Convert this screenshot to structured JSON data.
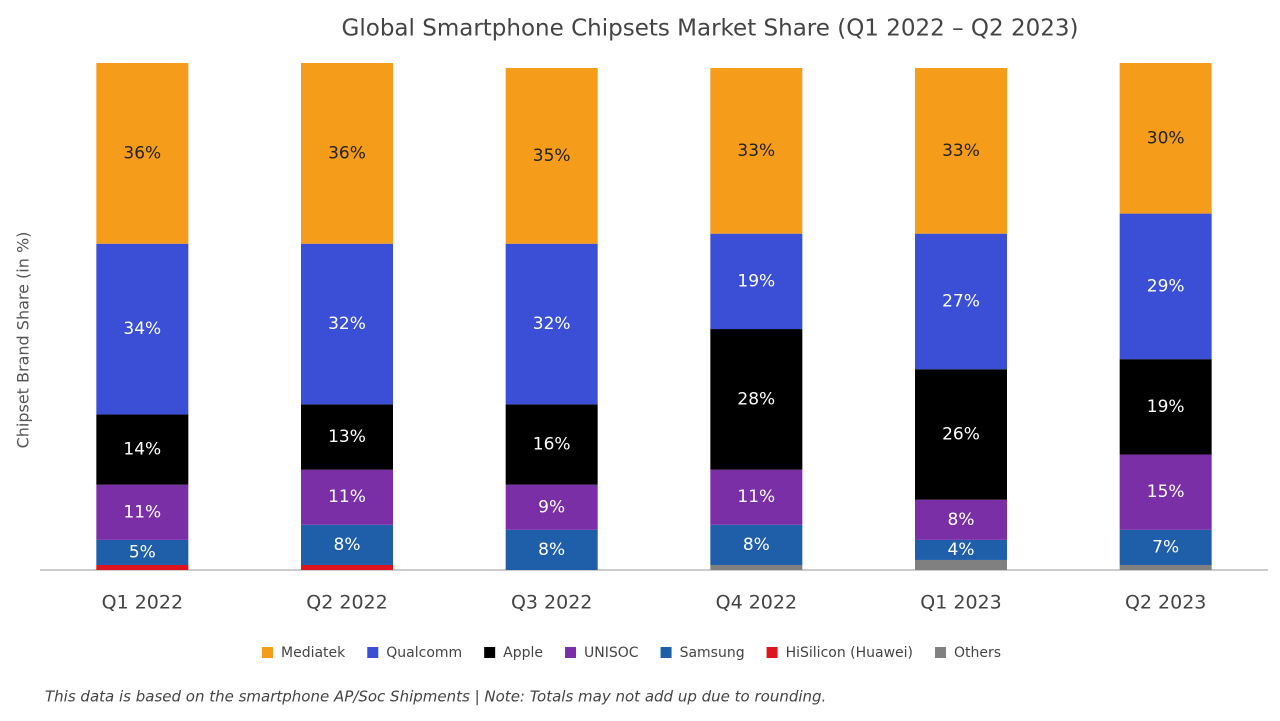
{
  "chart_data": {
    "type": "stacked_bar",
    "title": "Global Smartphone Chipsets Market Share (Q1 2022 – Q2 2023)",
    "y_label": "Chipset Brand Share (in %)",
    "note": "This data is based on the smartphone AP/Soc Shipments | Note: Totals may not add up due to rounding.",
    "categories": [
      "Q1 2022",
      "Q2 2022",
      "Q3 2022",
      "Q4 2022",
      "Q1 2023",
      "Q2 2023"
    ],
    "ylim": [
      0,
      101
    ],
    "series": [
      {
        "name": "Mediatek",
        "color": "#f59c1a",
        "values": [
          36,
          36,
          35,
          33,
          33,
          30
        ],
        "value_labels": [
          "36%",
          "36%",
          "35%",
          "33%",
          "33%",
          "30%"
        ]
      },
      {
        "name": "Qualcomm",
        "color": "#3a4fd6",
        "values": [
          34,
          32,
          32,
          19,
          27,
          29
        ],
        "value_labels": [
          "34%",
          "32%",
          "32%",
          "19%",
          "27%",
          "29%"
        ]
      },
      {
        "name": "Apple",
        "color": "#000000",
        "values": [
          14,
          13,
          16,
          28,
          26,
          19
        ],
        "value_labels": [
          "14%",
          "13%",
          "16%",
          "28%",
          "26%",
          "19%"
        ]
      },
      {
        "name": "UNISOC",
        "color": "#7b2fa6",
        "values": [
          11,
          11,
          9,
          11,
          8,
          15
        ],
        "value_labels": [
          "11%",
          "11%",
          "9%",
          "11%",
          "8%",
          "15%"
        ]
      },
      {
        "name": "Samsung",
        "color": "#1f5ea8",
        "values": [
          5,
          8,
          8,
          8,
          4,
          7
        ],
        "value_labels": [
          "5%",
          "8%",
          "8%",
          "8%",
          "4%",
          "7%"
        ]
      },
      {
        "name": "HiSilicon (Huawei)",
        "color": "#e0141e",
        "values": [
          1,
          1,
          0,
          0,
          0,
          0
        ]
      },
      {
        "name": "Others",
        "color": "#808080",
        "values": [
          0,
          0,
          0,
          1,
          2,
          1
        ]
      }
    ]
  }
}
